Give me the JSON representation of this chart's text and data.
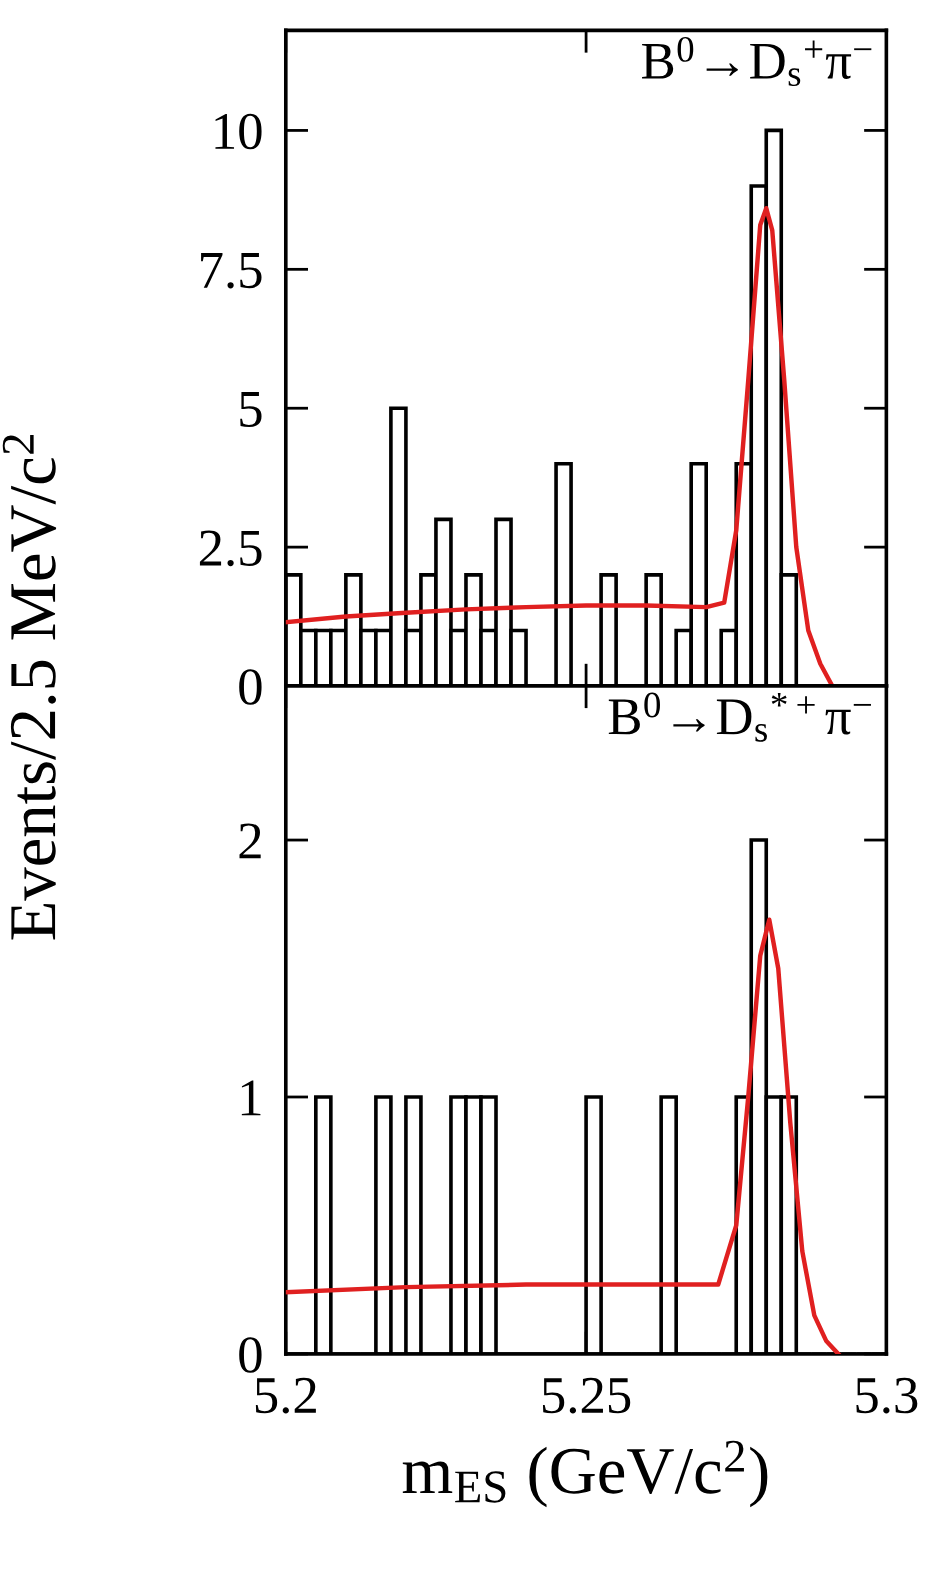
{
  "chart_data": [
    {
      "type": "histogram",
      "ylabel": "Events/2.5 MeV/c$^{2}$",
      "annotations": [
        "B$^{0}$→D$_{s}$$^{+}$π$^{−}$"
      ],
      "xlim": [
        5.2,
        5.3
      ],
      "xticks": [
        5.2,
        5.25,
        5.3
      ],
      "ylim": [
        0,
        11.8
      ],
      "yticks": [
        0,
        2.5,
        5,
        7.5,
        10
      ],
      "tick_labels": "y",
      "bins": [
        5.2,
        5.2025,
        5.205,
        5.2075,
        5.21,
        5.2125,
        5.215,
        5.2175,
        5.22,
        5.2225,
        5.225,
        5.2275,
        5.23,
        5.2325,
        5.235,
        5.2375,
        5.24,
        5.2425,
        5.245,
        5.2475,
        5.25,
        5.2525,
        5.255,
        5.2575,
        5.26,
        5.2625,
        5.265,
        5.2675,
        5.27,
        5.2725,
        5.275,
        5.2775,
        5.28,
        5.2825,
        5.285,
        5.2875,
        5.29,
        5.2925,
        5.295,
        5.2975,
        5.3
      ],
      "series": [
        {
          "color": "#000000",
          "values": [
            2,
            1,
            1,
            1,
            2,
            1,
            1,
            5,
            1,
            2,
            3,
            1,
            2,
            1,
            3,
            1,
            0,
            0,
            4,
            0,
            0,
            2,
            0,
            0,
            2,
            0,
            1,
            4,
            0,
            1,
            4,
            9,
            10,
            2,
            0,
            0,
            0,
            0,
            0,
            0
          ]
        },
        {
          "type": "line",
          "color": "#e02020",
          "x": [
            5.2,
            5.21,
            5.22,
            5.23,
            5.24,
            5.25,
            5.26,
            5.27,
            5.273,
            5.275,
            5.277,
            5.279,
            5.28,
            5.281,
            5.283,
            5.285,
            5.287,
            5.289,
            5.291
          ],
          "values": [
            1.15,
            1.25,
            1.32,
            1.38,
            1.42,
            1.45,
            1.45,
            1.42,
            1.5,
            2.8,
            5.5,
            8.3,
            8.6,
            8.2,
            5.5,
            2.5,
            1.0,
            0.4,
            0
          ]
        }
      ]
    },
    {
      "type": "histogram",
      "xlabel": "m$_{ES}$ (GeV/c$^{2}$)",
      "annotations": [
        "B$^{0}$→D$_{s}$$^{*+}$π$^{−}$"
      ],
      "xlim": [
        5.2,
        5.3
      ],
      "xticks": [
        5.2,
        5.25,
        5.3
      ],
      "ylim": [
        0,
        2.6
      ],
      "yticks": [
        0,
        1,
        2
      ],
      "bins": [
        5.2,
        5.2025,
        5.205,
        5.2075,
        5.21,
        5.2125,
        5.215,
        5.2175,
        5.22,
        5.2225,
        5.225,
        5.2275,
        5.23,
        5.2325,
        5.235,
        5.2375,
        5.24,
        5.2425,
        5.245,
        5.2475,
        5.25,
        5.2525,
        5.255,
        5.2575,
        5.26,
        5.2625,
        5.265,
        5.2675,
        5.27,
        5.2725,
        5.275,
        5.2775,
        5.28,
        5.2825,
        5.285,
        5.2875,
        5.29,
        5.2925,
        5.295,
        5.2975,
        5.3
      ],
      "series": [
        {
          "color": "#000000",
          "values": [
            0,
            0,
            1,
            0,
            0,
            0,
            1,
            0,
            1,
            0,
            0,
            1,
            1,
            1,
            0,
            0,
            0,
            0,
            0,
            0,
            1,
            0,
            0,
            0,
            0,
            1,
            0,
            0,
            0,
            0,
            1,
            2,
            1,
            1,
            0,
            0,
            0,
            0,
            0,
            0
          ]
        },
        {
          "type": "line",
          "color": "#e02020",
          "x": [
            5.2,
            5.22,
            5.24,
            5.26,
            5.272,
            5.275,
            5.277,
            5.279,
            5.2805,
            5.282,
            5.284,
            5.286,
            5.288,
            5.29,
            5.292
          ],
          "values": [
            0.24,
            0.26,
            0.27,
            0.27,
            0.27,
            0.5,
            1.0,
            1.55,
            1.69,
            1.5,
            0.9,
            0.4,
            0.15,
            0.05,
            0
          ]
        }
      ]
    }
  ]
}
